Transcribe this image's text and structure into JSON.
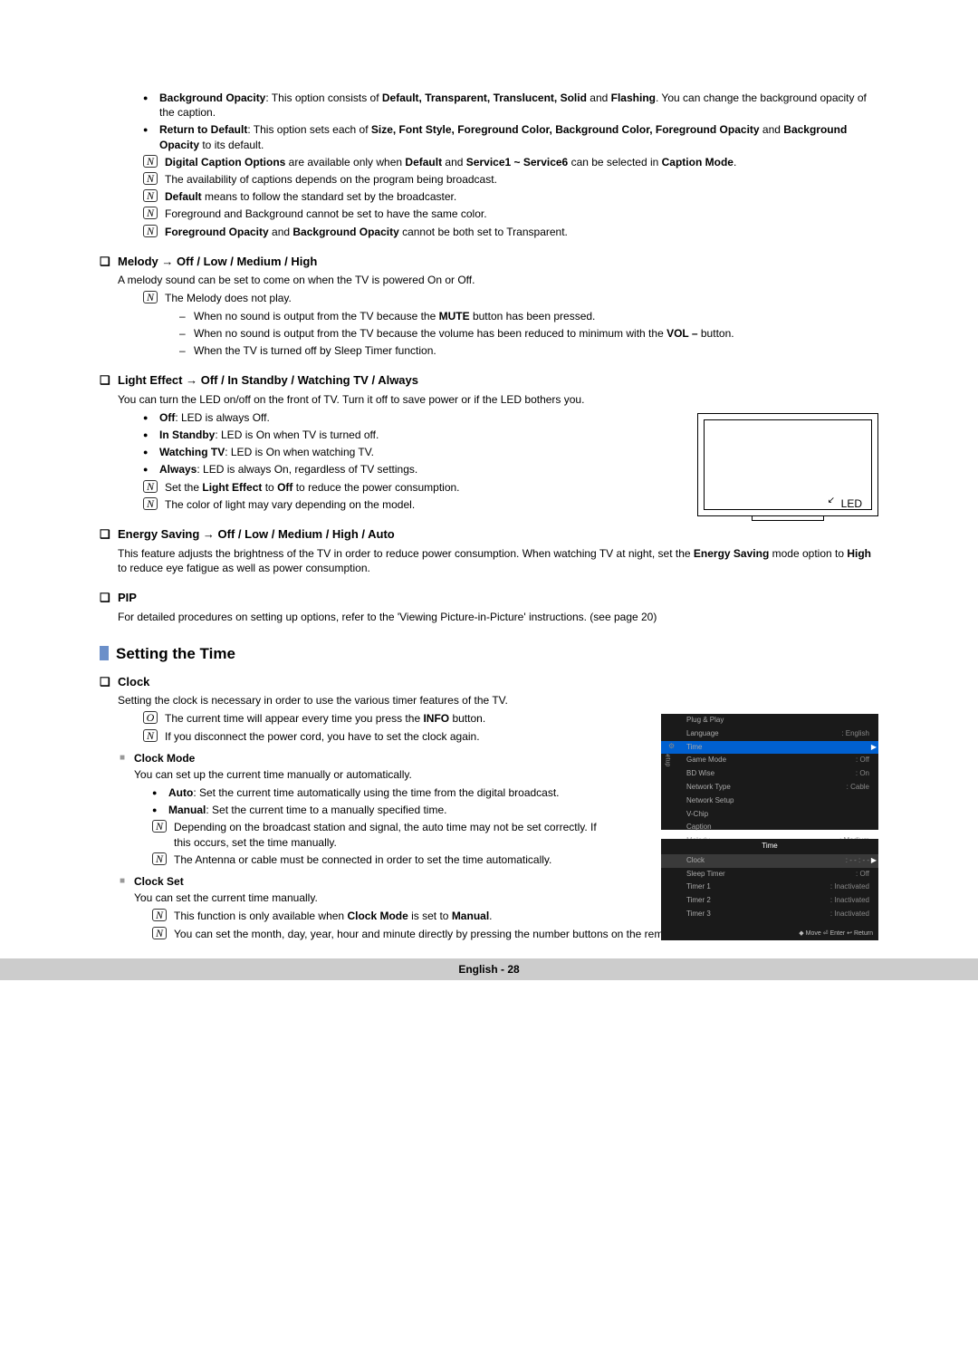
{
  "intro_bullets": [
    {
      "pre": "Background Opacity",
      "text": ": This option consists of ",
      "bold2": "Default, Transparent, Translucent, Solid",
      "mid": " and ",
      "bold3": "Flashing",
      "post": ". You can change the background opacity of the caption."
    },
    {
      "pre": "Return to Default",
      "text": ": This option sets each of ",
      "bold2": "Size, Font Style, Foreground Color, Background Color, Foreground Opacity",
      "mid": " and ",
      "bold3": "Background Opacity",
      "post": " to its default."
    }
  ],
  "intro_notes": [
    {
      "b1": "Digital Caption Options",
      "t1": " are available only when ",
      "b2": "Default",
      "t2": " and ",
      "b3": "Service1 ~ Service6",
      "t3": " can be selected in ",
      "b4": "Caption Mode",
      "t4": "."
    },
    {
      "plain": "The availability of captions depends on the program being broadcast."
    },
    {
      "b1": "Default",
      "t1": " means to follow the standard set by the broadcaster."
    },
    {
      "plain": "Foreground and Background cannot be set to have the same color."
    },
    {
      "b1": "Foreground Opacity",
      "t1": " and ",
      "b2": "Background Opacity",
      "t2": " cannot be both set to Transparent."
    }
  ],
  "melody": {
    "title": "Melody → Off / Low / Medium / High",
    "body": "A melody sound can be set to come on when the TV is powered On or Off.",
    "note": "The Melody does not play.",
    "dashes": [
      {
        "t1": "When no sound is output from the TV because the ",
        "b": "MUTE",
        "t2": " button has been pressed."
      },
      {
        "t1": "When no sound is output from the TV because the volume has been reduced to minimum with the ",
        "b": "VOL –",
        "t2": " button."
      },
      {
        "t1": "When the TV is turned off by Sleep Timer function.",
        "b": "",
        "t2": ""
      }
    ]
  },
  "light": {
    "title": "Light Effect → Off / In Standby / Watching TV / Always",
    "body": "You can turn the LED on/off on the front of TV. Turn it off to save power or if the LED bothers you.",
    "bullets": [
      {
        "b": "Off",
        "t": ": LED is always Off."
      },
      {
        "b": "In Standby",
        "t": ": LED is On when TV is turned off."
      },
      {
        "b": "Watching TV",
        "t": ": LED is On when watching TV."
      },
      {
        "b": "Always",
        "t": ": LED is always On, regardless of TV settings."
      }
    ],
    "notes": [
      {
        "t1": "Set the ",
        "b1": "Light Effect",
        "t2": " to ",
        "b2": "Off",
        "t3": " to reduce the power consumption."
      },
      {
        "plain": "The color of light may vary depending on the model."
      }
    ],
    "led_label": "LED"
  },
  "energy": {
    "title": "Energy Saving → Off / Low / Medium / High / Auto",
    "body_t1": "This feature adjusts the brightness of the TV in order to reduce power consumption. When watching TV at night, set the ",
    "body_b1": "Energy Saving",
    "body_t2": " mode option to ",
    "body_b2": "High",
    "body_t3": " to reduce eye fatigue as well as power consumption."
  },
  "pip": {
    "title": "PIP",
    "body": "For detailed procedures on setting up options, refer to the 'Viewing Picture-in-Picture' instructions. (see page 20)"
  },
  "time_heading": "Setting the Time",
  "clock": {
    "title": "Clock",
    "body": "Setting the clock is necessary in order to use the various timer features of the TV.",
    "note1_t1": "The current time will appear every time you press the ",
    "note1_b": "INFO",
    "note1_t2": " button.",
    "note1_icon": "O",
    "note2": "If you disconnect the power cord, you have to set the clock again.",
    "mode": {
      "title": "Clock Mode",
      "body": "You can set up the current time manually or automatically.",
      "bullets": [
        {
          "b": "Auto",
          "t": ": Set the current time automatically using the time from the digital broadcast."
        },
        {
          "b": "Manual",
          "t": ": Set the current time to a manually specified time."
        }
      ],
      "notes": [
        "Depending on the broadcast station and signal, the auto time may not be set correctly. If this occurs, set the time manually.",
        "The Antenna or cable must be connected in order to set the time automatically."
      ]
    },
    "set": {
      "title": "Clock Set",
      "body": "You can set the current time manually.",
      "notes": [
        {
          "t1": "This function is only available when ",
          "b1": "Clock Mode",
          "t2": " is set to ",
          "b2": "Manual",
          "t3": "."
        },
        {
          "plain": "You can set the month, day, year, hour and minute directly by pressing the number buttons on the remote control."
        }
      ]
    }
  },
  "osd1": {
    "side": "Setup",
    "rows": [
      {
        "l": "Plug & Play",
        "v": ""
      },
      {
        "l": "Language",
        "v": ": English"
      },
      {
        "l": "Time",
        "v": "",
        "hl": true,
        "arrow": true,
        "icon": "⚙"
      },
      {
        "l": "Game Mode",
        "v": ": Off"
      },
      {
        "l": "BD Wise",
        "v": ": On"
      },
      {
        "l": "Network Type",
        "v": ": Cable"
      },
      {
        "l": "Network Setup",
        "v": ""
      },
      {
        "l": "V-Chip",
        "v": ""
      },
      {
        "l": "Caption",
        "v": ""
      },
      {
        "l": "Melody",
        "v": ": Medium"
      }
    ]
  },
  "osd2": {
    "title": "Time",
    "rows": [
      {
        "l": "Clock",
        "v": ": - - : - -",
        "hl": true,
        "arrow": true
      },
      {
        "l": "Sleep Timer",
        "v": ": Off"
      },
      {
        "l": "Timer 1",
        "v": ": Inactivated"
      },
      {
        "l": "Timer 2",
        "v": ": Inactivated"
      },
      {
        "l": "Timer 3",
        "v": ": Inactivated"
      }
    ],
    "footer": "◆ Move   ⏎ Enter   ↩ Return"
  },
  "footer": "English - 28"
}
